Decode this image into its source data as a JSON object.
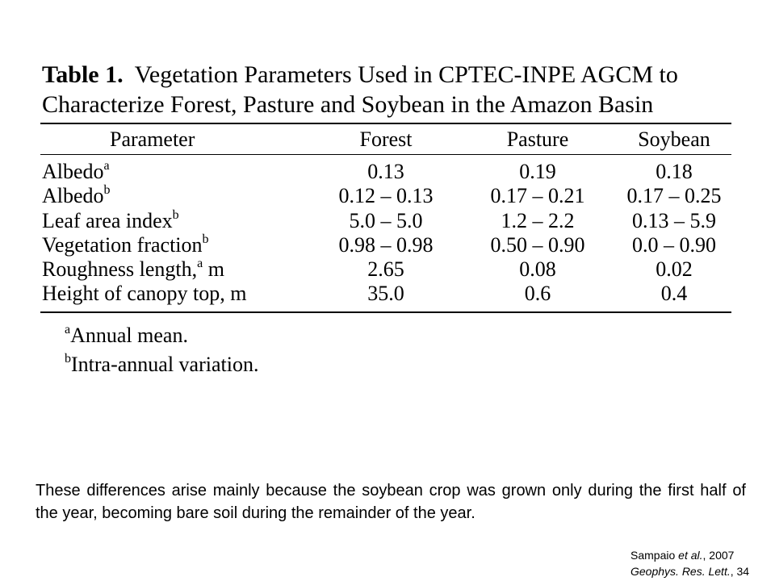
{
  "table": {
    "label": "Table 1.",
    "title": "Vegetation Parameters Used in CPTEC-INPE AGCM to Characterize Forest, Pasture and Soybean in the Amazon Basin",
    "columns": [
      "Parameter",
      "Forest",
      "Pasture",
      "Soybean"
    ],
    "rows": [
      {
        "parameter": "Albedo",
        "sup": "a",
        "suffix": "",
        "forest": "0.13",
        "pasture": "0.19",
        "soybean": "0.18"
      },
      {
        "parameter": "Albedo",
        "sup": "b",
        "suffix": "",
        "forest": "0.12 – 0.13",
        "pasture": "0.17 – 0.21",
        "soybean": "0.17 – 0.25"
      },
      {
        "parameter": "Leaf area index",
        "sup": "b",
        "suffix": "",
        "forest": "5.0 – 5.0",
        "pasture": "1.2 – 2.2",
        "soybean": "0.13 – 5.9"
      },
      {
        "parameter": "Vegetation fraction",
        "sup": "b",
        "suffix": "",
        "forest": "0.98 – 0.98",
        "pasture": "0.50 – 0.90",
        "soybean": "0.0 – 0.90"
      },
      {
        "parameter": "Roughness length,",
        "sup": "a",
        "suffix": " m",
        "forest": "2.65",
        "pasture": "0.08",
        "soybean": "0.02"
      },
      {
        "parameter": "Height of canopy top, m",
        "sup": "",
        "suffix": "",
        "forest": "35.0",
        "pasture": "0.6",
        "soybean": "0.4"
      }
    ],
    "footnotes": [
      {
        "mark": "a",
        "text": "Annual mean."
      },
      {
        "mark": "b",
        "text": "Intra-annual variation."
      }
    ]
  },
  "caption": "These differences arise mainly because the soybean crop was grown only during the first half of the year, becoming bare soil during the remainder of the year.",
  "citation": {
    "authors": "Sampaio",
    "etal": "et al.",
    "year": ", 2007",
    "journal": "Geophys. Res. Lett.",
    "volume": ", 34"
  }
}
